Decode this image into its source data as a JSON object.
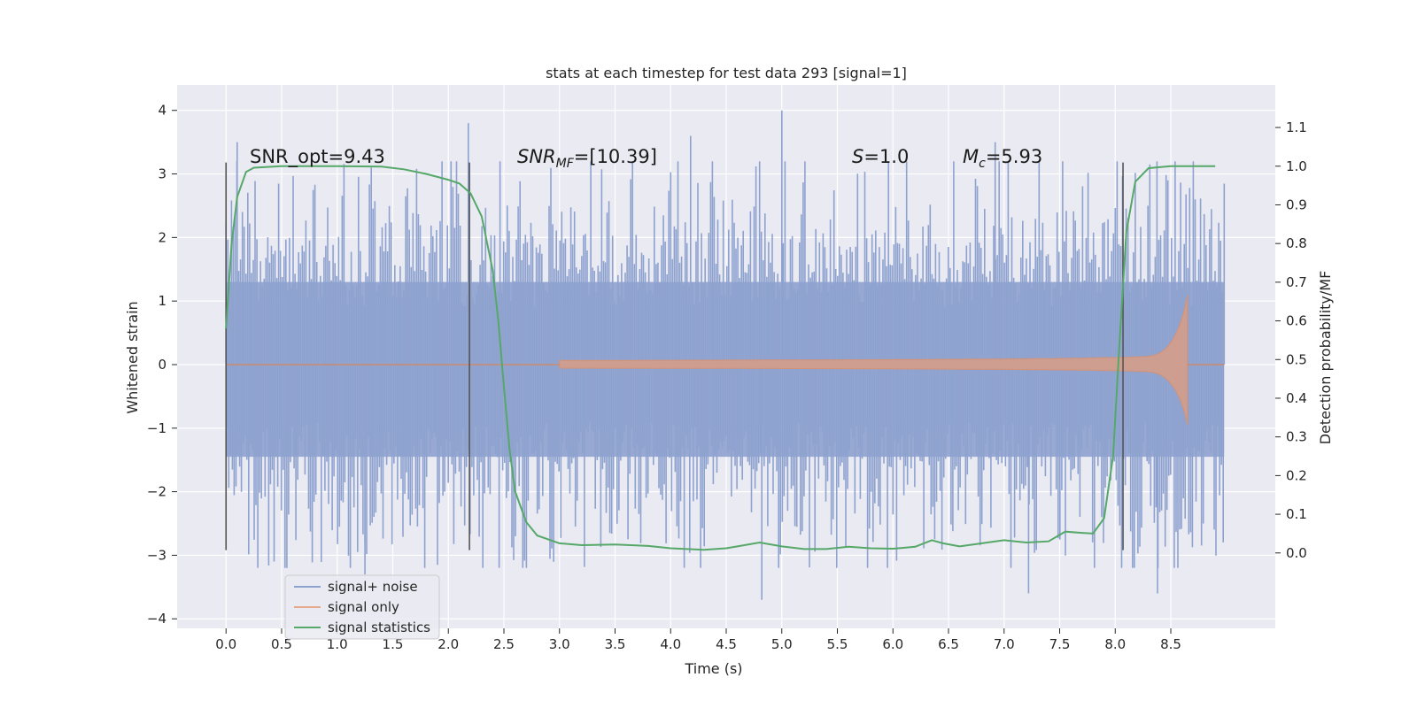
{
  "chart_data": {
    "type": "line",
    "title": "stats at each timestep for test data 293 [signal=1]",
    "xlabel": "Time (s)",
    "ylabel_left": "Whitened strain",
    "ylabel_right": "Detection probability/MF",
    "xlim": [
      -0.44,
      9.44
    ],
    "ylim_left": [
      -4.15,
      4.4
    ],
    "ylim_right": [
      -0.195,
      1.21
    ],
    "x_ticks": [
      0.0,
      0.5,
      1.0,
      1.5,
      2.0,
      2.5,
      3.0,
      3.5,
      4.0,
      4.5,
      5.0,
      5.5,
      6.0,
      6.5,
      7.0,
      7.5,
      8.0,
      8.5
    ],
    "x_tick_labels": [
      "0.0",
      "0.5",
      "1.0",
      "1.5",
      "2.0",
      "2.5",
      "3.0",
      "3.5",
      "4.0",
      "4.5",
      "5.0",
      "5.5",
      "6.0",
      "6.5",
      "7.0",
      "7.5",
      "8.0",
      "8.5"
    ],
    "y_left_ticks": [
      4,
      3,
      2,
      1,
      0,
      -1,
      -2,
      -3,
      -4
    ],
    "y_left_tick_labels": [
      "4",
      "3",
      "2",
      "1",
      "0",
      "−1",
      "−2",
      "−3",
      "−4"
    ],
    "y_right_ticks": [
      1.1,
      1.0,
      0.9,
      0.8,
      0.7,
      0.6,
      0.5,
      0.4,
      0.3,
      0.2,
      0.1,
      0.0
    ],
    "y_right_tick_labels": [
      "1.1",
      "1.0",
      "0.9",
      "0.8",
      "0.7",
      "0.6",
      "0.5",
      "0.4",
      "0.3",
      "0.2",
      "0.1",
      "0.0"
    ],
    "annotations": {
      "snr_opt": "SNR_opt=9.43",
      "snr_mf_base": "SNR",
      "snr_mf_sub": "MF",
      "snr_mf_value": "=[10.39]",
      "s_symbol": "S",
      "s_value": "=1.0",
      "mc_symbol": "M",
      "mc_sub": "c",
      "mc_value": "=5.93"
    },
    "vertical_lines_x": [
      0.0,
      2.19,
      8.07
    ],
    "vertical_lines_range": [
      -2.92,
      3.18
    ],
    "series": [
      {
        "name": "signal+ noise",
        "color": "#8ea2cf",
        "description_style": "noisy whitened strain around 0",
        "x_range": [
          0.0,
          8.98
        ],
        "amplitude_core": 1.3,
        "peaks": [
          [
            0.1,
            3.5
          ],
          [
            2.18,
            3.8
          ],
          [
            4.18,
            3.6
          ],
          [
            5.0,
            4.0
          ],
          [
            6.92,
            3.5
          ],
          [
            4.82,
            -3.7
          ],
          [
            7.22,
            -3.6
          ],
          [
            1.25,
            -3.3
          ],
          [
            8.38,
            -3.6
          ]
        ]
      },
      {
        "name": "signal only",
        "color": "#dd8452",
        "description_style": "chirp growing in amplitude until merger",
        "chirp_start": 3.0,
        "merger_time": 8.65,
        "peak_amplitude": 1.1
      },
      {
        "name": "signal statistics",
        "color": "#55a868",
        "axis": "right",
        "points": [
          [
            0.0,
            0.58
          ],
          [
            0.05,
            0.8
          ],
          [
            0.1,
            0.92
          ],
          [
            0.18,
            0.985
          ],
          [
            0.25,
            0.996
          ],
          [
            0.5,
            1.0
          ],
          [
            1.0,
            1.0
          ],
          [
            1.4,
            0.999
          ],
          [
            1.6,
            0.992
          ],
          [
            1.8,
            0.98
          ],
          [
            2.0,
            0.965
          ],
          [
            2.1,
            0.955
          ],
          [
            2.2,
            0.93
          ],
          [
            2.3,
            0.87
          ],
          [
            2.4,
            0.73
          ],
          [
            2.45,
            0.6
          ],
          [
            2.5,
            0.43
          ],
          [
            2.55,
            0.27
          ],
          [
            2.6,
            0.16
          ],
          [
            2.7,
            0.08
          ],
          [
            2.8,
            0.045
          ],
          [
            3.0,
            0.025
          ],
          [
            3.2,
            0.02
          ],
          [
            3.5,
            0.022
          ],
          [
            3.8,
            0.018
          ],
          [
            4.0,
            0.012
          ],
          [
            4.3,
            0.008
          ],
          [
            4.5,
            0.012
          ],
          [
            4.6,
            0.017
          ],
          [
            4.8,
            0.027
          ],
          [
            5.0,
            0.017
          ],
          [
            5.2,
            0.01
          ],
          [
            5.4,
            0.01
          ],
          [
            5.6,
            0.016
          ],
          [
            5.8,
            0.012
          ],
          [
            6.0,
            0.011
          ],
          [
            6.2,
            0.016
          ],
          [
            6.35,
            0.033
          ],
          [
            6.45,
            0.025
          ],
          [
            6.6,
            0.017
          ],
          [
            6.8,
            0.025
          ],
          [
            7.0,
            0.033
          ],
          [
            7.2,
            0.027
          ],
          [
            7.4,
            0.03
          ],
          [
            7.55,
            0.055
          ],
          [
            7.7,
            0.052
          ],
          [
            7.8,
            0.05
          ],
          [
            7.9,
            0.09
          ],
          [
            7.98,
            0.25
          ],
          [
            8.04,
            0.55
          ],
          [
            8.1,
            0.83
          ],
          [
            8.18,
            0.96
          ],
          [
            8.3,
            0.995
          ],
          [
            8.5,
            1.0
          ],
          [
            8.9,
            1.0
          ]
        ]
      }
    ],
    "legend": {
      "placement": "lower-left",
      "entries": [
        "signal+ noise",
        "signal only",
        "signal statistics"
      ]
    }
  }
}
